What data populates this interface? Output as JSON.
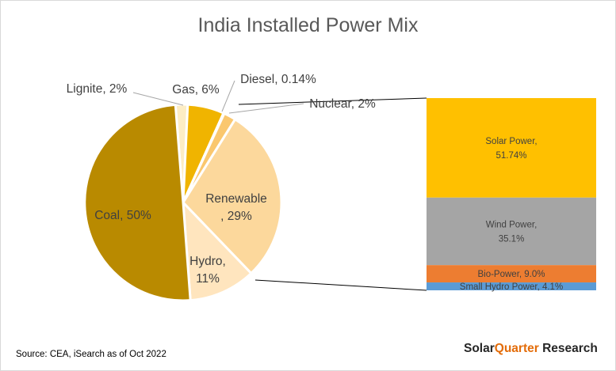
{
  "chart_data": [
    {
      "type": "pie",
      "title": "India Installed Power Mix",
      "slices": [
        {
          "label": "Lignite, 2%",
          "name": "Lignite",
          "value": 2,
          "color": "#FDEDC4"
        },
        {
          "label": "Gas, 6%",
          "name": "Gas",
          "value": 6,
          "color": "#F0B400"
        },
        {
          "label": "Diesel, 0.14%",
          "name": "Diesel",
          "value": 0.14,
          "color": "#E9A500"
        },
        {
          "label": "Nuclear, 2%",
          "name": "Nuclear",
          "value": 2,
          "color": "#FAC76E"
        },
        {
          "label": "Renewable\n, 29%",
          "name": "Renewable",
          "value": 29,
          "color": "#FCD89C"
        },
        {
          "label": "Hydro,\n11%",
          "name": "Hydro",
          "value": 11,
          "color": "#FFE5BE"
        },
        {
          "label": "Coal, 50%",
          "name": "Coal",
          "value": 50,
          "color": "#B98A00"
        }
      ]
    },
    {
      "type": "bar",
      "stacked": true,
      "segments": [
        {
          "label": "Solar Power,\n51.74%",
          "name": "Solar Power",
          "value": 51.74,
          "color": "#FFC000"
        },
        {
          "label": "Wind Power,\n35.1%",
          "name": "Wind Power",
          "value": 35.1,
          "color": "#A5A5A5"
        },
        {
          "label": "Bio-Power, 9.0%",
          "name": "Bio-Power",
          "value": 9.0,
          "color": "#ED7D31"
        },
        {
          "label": "Small Hydro Power, 4.1%",
          "name": "Small Hydro Power",
          "value": 4.1,
          "color": "#5B9BD5"
        }
      ]
    }
  ],
  "source": "Source: CEA, iSearch as of Oct 2022",
  "brand": {
    "main": "Solar",
    "accent": "Quarter",
    "tail": " Research"
  }
}
